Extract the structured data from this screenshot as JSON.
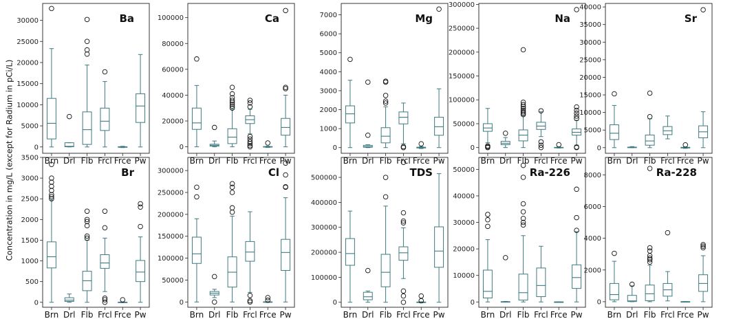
{
  "figure": {
    "ylabel": "Concentration in mg/L (except for Radium in pCi/L)",
    "box_color": "#3d7a80",
    "categories": [
      "Brn",
      "Drl",
      "Flb",
      "Frcl",
      "Frce",
      "Pw"
    ]
  },
  "chart_data": [
    {
      "type": "box",
      "title": "Ba",
      "ylim": [
        -1500,
        34000
      ],
      "yticks": [
        0,
        5000,
        10000,
        15000,
        20000,
        25000,
        30000
      ],
      "categories": [
        "Brn",
        "Drl",
        "Flb",
        "Frcl",
        "Frce",
        "Pw"
      ],
      "boxes": [
        {
          "whislo": 0,
          "q1": 1900,
          "med": 5600,
          "q3": 11500,
          "whishi": 23300,
          "fliers": [
            32800
          ]
        },
        {
          "whislo": 0,
          "q1": 50,
          "med": 150,
          "q3": 1000,
          "whishi": 1000,
          "fliers": [
            7200
          ]
        },
        {
          "whislo": 0,
          "q1": 600,
          "med": 4100,
          "q3": 8300,
          "whishi": 19400,
          "fliers": [
            22000,
            23000,
            25000,
            30200
          ]
        },
        {
          "whislo": 0,
          "q1": 3900,
          "med": 6100,
          "q3": 9200,
          "whishi": 15500,
          "fliers": [
            17800
          ]
        },
        {
          "whislo": -150,
          "q1": -50,
          "med": 0,
          "q3": 50,
          "whishi": 150,
          "fliers": []
        },
        {
          "whislo": 0,
          "q1": 5800,
          "med": 9700,
          "q3": 12600,
          "whishi": 21900,
          "fliers": []
        }
      ]
    },
    {
      "type": "box",
      "title": "Ca",
      "ylim": [
        -5000,
        111000
      ],
      "yticks": [
        0,
        20000,
        40000,
        60000,
        80000,
        100000
      ],
      "categories": [
        "Brn",
        "Drl",
        "Flb",
        "Frcl",
        "Frce",
        "Pw"
      ],
      "boxes": [
        {
          "whislo": 0,
          "q1": 13500,
          "med": 18500,
          "q3": 30000,
          "whishi": 47500,
          "fliers": [
            68000
          ]
        },
        {
          "whislo": 0,
          "q1": 500,
          "med": 1200,
          "q3": 2000,
          "whishi": 4500,
          "fliers": [
            15000
          ]
        },
        {
          "whislo": 0,
          "q1": 2500,
          "med": 7500,
          "q3": 14000,
          "whishi": 29000,
          "fliers": [
            30000,
            31500,
            33000,
            34500,
            36000,
            38000,
            41000,
            46000
          ]
        },
        {
          "whislo": 10000,
          "q1": 18000,
          "med": 21000,
          "q3": 24000,
          "whishi": 29000,
          "fliers": [
            0,
            1000,
            2500,
            4000,
            6000,
            8000,
            31000,
            34000,
            36000
          ]
        },
        {
          "whislo": -500,
          "q1": -200,
          "med": 0,
          "q3": 200,
          "whishi": 500,
          "fliers": [
            3000
          ]
        },
        {
          "whislo": 0,
          "q1": 9000,
          "med": 15000,
          "q3": 22000,
          "whishi": 40000,
          "fliers": [
            45000,
            46000,
            105500
          ]
        }
      ]
    },
    {
      "type": "box",
      "title": "Mg",
      "ylim": [
        -300,
        7600
      ],
      "yticks": [
        0,
        1000,
        2000,
        3000,
        4000,
        5000,
        6000,
        7000
      ],
      "categories": [
        "Brn",
        "Drl",
        "Flb",
        "Frcl",
        "Frce",
        "Pw"
      ],
      "boxes": [
        {
          "whislo": 0,
          "q1": 1300,
          "med": 1780,
          "q3": 2200,
          "whishi": 3550,
          "fliers": [
            4650
          ]
        },
        {
          "whislo": 0,
          "q1": 20,
          "med": 50,
          "q3": 120,
          "whishi": 150,
          "fliers": [
            650,
            3450
          ]
        },
        {
          "whislo": 0,
          "q1": 250,
          "med": 600,
          "q3": 1050,
          "whishi": 2150,
          "fliers": [
            2350,
            2450,
            2750,
            3450,
            3500
          ]
        },
        {
          "whislo": 200,
          "q1": 1250,
          "med": 1600,
          "q3": 1880,
          "whishi": 2350,
          "fliers": [
            0,
            50
          ]
        },
        {
          "whislo": -50,
          "q1": -20,
          "med": 0,
          "q3": 20,
          "whishi": 50,
          "fliers": [
            200
          ]
        },
        {
          "whislo": 0,
          "q1": 650,
          "med": 1100,
          "q3": 1600,
          "whishi": 3100,
          "fliers": [
            7300
          ]
        }
      ]
    },
    {
      "type": "box",
      "title": "Na",
      "ylim": [
        -12000,
        302000
      ],
      "yticks": [
        0,
        50000,
        100000,
        150000,
        200000,
        250000,
        300000
      ],
      "categories": [
        "Brn",
        "Drl",
        "Flb",
        "Frcl",
        "Frce",
        "Pw"
      ],
      "boxes": [
        {
          "whislo": 10000,
          "q1": 34000,
          "med": 41000,
          "q3": 50000,
          "whishi": 82000,
          "fliers": [
            0,
            1500,
            3500
          ]
        },
        {
          "whislo": 0,
          "q1": 6000,
          "med": 9000,
          "q3": 13000,
          "whishi": 21000,
          "fliers": [
            30000
          ]
        },
        {
          "whislo": 0,
          "q1": 14000,
          "med": 26000,
          "q3": 37000,
          "whishi": 67000,
          "fliers": [
            69000,
            72000,
            75000,
            78000,
            82000,
            86000,
            90000,
            95000,
            205000
          ]
        },
        {
          "whislo": 23000,
          "q1": 38000,
          "med": 45000,
          "q3": 53000,
          "whishi": 75000,
          "fliers": [
            0,
            5000,
            12000,
            77000
          ]
        },
        {
          "whislo": -1000,
          "q1": -500,
          "med": 0,
          "q3": 500,
          "whishi": 1000,
          "fliers": [
            6000
          ]
        },
        {
          "whislo": 5000,
          "q1": 26000,
          "med": 32000,
          "q3": 39000,
          "whishi": 57000,
          "fliers": [
            0,
            1000,
            61000,
            66000,
            72000,
            78000,
            85000,
            289000
          ]
        }
      ]
    },
    {
      "type": "box",
      "title": "Sr",
      "ylim": [
        -1600,
        41000
      ],
      "yticks": [
        0,
        5000,
        10000,
        15000,
        20000,
        25000,
        30000,
        35000,
        40000
      ],
      "categories": [
        "Brn",
        "Drl",
        "Flb",
        "Frcl",
        "Frce",
        "Pw"
      ],
      "boxes": [
        {
          "whislo": 0,
          "q1": 2300,
          "med": 4100,
          "q3": 6500,
          "whishi": 12000,
          "fliers": [
            15300
          ]
        },
        {
          "whislo": 0,
          "q1": 50,
          "med": 100,
          "q3": 150,
          "whishi": 300,
          "fliers": []
        },
        {
          "whislo": 0,
          "q1": 700,
          "med": 1900,
          "q3": 3600,
          "whishi": 8200,
          "fliers": [
            8800,
            15500
          ]
        },
        {
          "whislo": 2500,
          "q1": 3700,
          "med": 4800,
          "q3": 6000,
          "whishi": 9000,
          "fliers": []
        },
        {
          "whislo": -200,
          "q1": -100,
          "med": 0,
          "q3": 100,
          "whishi": 200,
          "fliers": [
            800
          ]
        },
        {
          "whislo": 0,
          "q1": 2800,
          "med": 4500,
          "q3": 6200,
          "whishi": 10200,
          "fliers": [
            39200
          ]
        }
      ]
    },
    {
      "type": "box",
      "title": "Br",
      "ylim": [
        -120,
        3500
      ],
      "yticks": [
        0,
        500,
        1000,
        1500,
        2000,
        2500,
        3000,
        3500
      ],
      "categories": [
        "Brn",
        "Drl",
        "Flb",
        "Frcl",
        "Frce",
        "Pw"
      ],
      "boxes": [
        {
          "whislo": 0,
          "q1": 830,
          "med": 1100,
          "q3": 1460,
          "whishi": 2470,
          "fliers": [
            2500,
            2550,
            2600,
            2700,
            2800,
            2900,
            3000,
            3330
          ]
        },
        {
          "whislo": 0,
          "q1": 20,
          "med": 50,
          "q3": 110,
          "whishi": 200,
          "fliers": []
        },
        {
          "whislo": 0,
          "q1": 280,
          "med": 520,
          "q3": 750,
          "whishi": 1500,
          "fliers": [
            1550,
            1600,
            1850,
            1950,
            2000,
            2200
          ]
        },
        {
          "whislo": 260,
          "q1": 820,
          "med": 950,
          "q3": 1150,
          "whishi": 1550,
          "fliers": [
            0,
            60,
            100,
            1800,
            2200
          ]
        },
        {
          "whislo": -10,
          "q1": -5,
          "med": 0,
          "q3": 5,
          "whishi": 10,
          "fliers": [
            60
          ]
        },
        {
          "whislo": 0,
          "q1": 500,
          "med": 730,
          "q3": 1010,
          "whishi": 1580,
          "fliers": [
            1830,
            2300,
            2380
          ]
        }
      ]
    },
    {
      "type": "box",
      "title": "Cl",
      "ylim": [
        -12000,
        330000
      ],
      "yticks": [
        0,
        50000,
        100000,
        150000,
        200000,
        250000,
        300000
      ],
      "categories": [
        "Brn",
        "Drl",
        "Flb",
        "Frcl",
        "Frce",
        "Pw"
      ],
      "boxes": [
        {
          "whislo": 0,
          "q1": 88000,
          "med": 110000,
          "q3": 148000,
          "whishi": 190000,
          "fliers": [
            240000,
            262000
          ]
        },
        {
          "whislo": 10000,
          "q1": 16000,
          "med": 20000,
          "q3": 24000,
          "whishi": 29000,
          "fliers": [
            0,
            58000
          ]
        },
        {
          "whislo": 0,
          "q1": 34000,
          "med": 68000,
          "q3": 103000,
          "whishi": 196000,
          "fliers": [
            205000,
            215000,
            250000,
            262000,
            270000
          ]
        },
        {
          "whislo": 22000,
          "q1": 93000,
          "med": 114000,
          "q3": 138000,
          "whishi": 206000,
          "fliers": [
            0,
            3000,
            15000
          ]
        },
        {
          "whislo": -1000,
          "q1": -500,
          "med": 0,
          "q3": 500,
          "whishi": 1000,
          "fliers": [
            4000,
            10000
          ]
        },
        {
          "whislo": 0,
          "q1": 72000,
          "med": 113000,
          "q3": 143000,
          "whishi": 238000,
          "fliers": [
            262000,
            263000,
            290000,
            317000
          ]
        }
      ]
    },
    {
      "type": "box",
      "title": "TDS",
      "ylim": [
        -20000,
        580000
      ],
      "yticks": [
        0,
        100000,
        200000,
        300000,
        400000,
        500000
      ],
      "categories": [
        "Brn",
        "Drl",
        "Flb",
        "Frcl",
        "Frce",
        "Pw"
      ],
      "boxes": [
        {
          "whislo": 0,
          "q1": 148000,
          "med": 195000,
          "q3": 255000,
          "whishi": 365000,
          "fliers": []
        },
        {
          "whislo": 0,
          "q1": 10000,
          "med": 22000,
          "q3": 40000,
          "whishi": 45000,
          "fliers": [
            127000
          ]
        },
        {
          "whislo": 0,
          "q1": 62000,
          "med": 120000,
          "q3": 192000,
          "whishi": 385000,
          "fliers": [
            422000,
            500000
          ]
        },
        {
          "whislo": 95000,
          "q1": 168000,
          "med": 198000,
          "q3": 222000,
          "whishi": 298000,
          "fliers": [
            0,
            25000,
            45000,
            318000,
            325000,
            358000,
            560000
          ]
        },
        {
          "whislo": -2000,
          "q1": -1000,
          "med": 0,
          "q3": 1000,
          "whishi": 2000,
          "fliers": [
            6000,
            25000
          ]
        },
        {
          "whislo": 0,
          "q1": 140000,
          "med": 205000,
          "q3": 302000,
          "whishi": 515000,
          "fliers": []
        }
      ]
    },
    {
      "type": "box",
      "title": "Ra-226",
      "ylim": [
        -2000,
        54500
      ],
      "yticks": [
        0,
        10000,
        20000,
        30000,
        40000,
        50000
      ],
      "categories": [
        "Brn",
        "Drl",
        "Flb",
        "Frcl",
        "Frce",
        "Pw"
      ],
      "boxes": [
        {
          "whislo": 0,
          "q1": 1500,
          "med": 4000,
          "q3": 12000,
          "whishi": 23500,
          "fliers": [
            28500,
            31000,
            33000
          ]
        },
        {
          "whislo": 0,
          "q1": 20,
          "med": 60,
          "q3": 120,
          "whishi": 200,
          "fliers": [
            16700
          ]
        },
        {
          "whislo": 0,
          "q1": 700,
          "med": 3500,
          "q3": 10500,
          "whishi": 25000,
          "fliers": [
            29000,
            30000,
            31500,
            34000,
            37000,
            47000,
            51500
          ]
        },
        {
          "whislo": 0,
          "q1": 2000,
          "med": 6200,
          "q3": 12800,
          "whishi": 21000,
          "fliers": []
        },
        {
          "whislo": -50,
          "q1": -20,
          "med": 0,
          "q3": 20,
          "whishi": 50,
          "fliers": []
        },
        {
          "whislo": 0,
          "q1": 5100,
          "med": 9200,
          "q3": 14000,
          "whishi": 26500,
          "fliers": [
            27000,
            31800,
            42500
          ]
        }
      ]
    },
    {
      "type": "box",
      "title": "Ra-228",
      "ylim": [
        -350,
        9100
      ],
      "yticks": [
        0,
        2000,
        4000,
        6000,
        8000
      ],
      "categories": [
        "Brn",
        "Drl",
        "Flb",
        "Frcl",
        "Frce",
        "Pw"
      ],
      "boxes": [
        {
          "whislo": 0,
          "q1": 120,
          "med": 450,
          "q3": 1150,
          "whishi": 2550,
          "fliers": [
            3050
          ]
        },
        {
          "whislo": 0,
          "q1": 10,
          "med": 50,
          "q3": 400,
          "whishi": 1000,
          "fliers": [
            1100
          ]
        },
        {
          "whislo": 0,
          "q1": 60,
          "med": 500,
          "q3": 1050,
          "whishi": 2300,
          "fliers": [
            2500,
            2650,
            2750,
            2900,
            3200,
            3400,
            8400
          ]
        },
        {
          "whislo": 50,
          "q1": 350,
          "med": 750,
          "q3": 1150,
          "whishi": 1900,
          "fliers": [
            4350
          ]
        },
        {
          "whislo": -10,
          "q1": -5,
          "med": 0,
          "q3": 5,
          "whishi": 10,
          "fliers": []
        },
        {
          "whislo": 0,
          "q1": 650,
          "med": 1150,
          "q3": 1700,
          "whishi": 2900,
          "fliers": [
            3400,
            3500,
            3600
          ]
        }
      ]
    }
  ]
}
